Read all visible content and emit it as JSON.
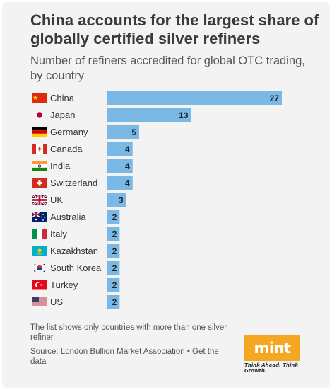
{
  "header": {
    "title": "China accounts for the largest share of globally certified silver refiners",
    "subtitle": "Number of refiners accredited for global OTC trading, by country"
  },
  "footer": {
    "note": "The list shows only countries with more than one silver refiner.",
    "source_prefix": "Source: London Bullion Market Association • ",
    "source_link": "Get the data"
  },
  "brand": {
    "logo": "mint",
    "tagline": "Think Ahead. Think Growth.",
    "color": "#f5a623"
  },
  "colors": {
    "bar": "#7ab8e6",
    "label": "#333333",
    "value": "#222222"
  },
  "chart_data": {
    "type": "bar",
    "orientation": "horizontal",
    "categories": [
      "China",
      "Japan",
      "Germany",
      "Canada",
      "India",
      "Switzerland",
      "UK",
      "Australia",
      "Italy",
      "Kazakhstan",
      "South Korea",
      "Turkey",
      "US"
    ],
    "values": [
      27,
      13,
      5,
      4,
      4,
      4,
      3,
      2,
      2,
      2,
      2,
      2,
      2
    ],
    "flags": [
      "flag-china",
      "flag-japan",
      "flag-germany",
      "flag-canada",
      "flag-india",
      "flag-switzerland",
      "flag-uk",
      "flag-australia",
      "flag-italy",
      "flag-kazakhstan",
      "flag-south-korea",
      "flag-turkey",
      "flag-us"
    ],
    "xlim": [
      0,
      27
    ],
    "grid": false,
    "data_labels": true
  }
}
